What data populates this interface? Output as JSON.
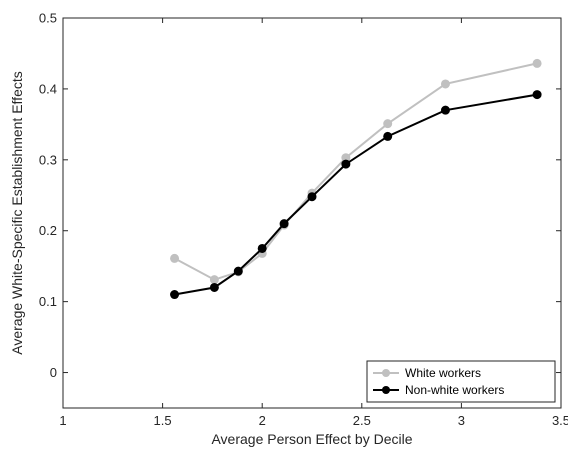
{
  "chart_data": {
    "type": "line",
    "title": "",
    "xlabel": "Average Person Effect by Decile",
    "ylabel": "Average White-Specific Establishment Effects",
    "xlim": [
      1,
      3.5
    ],
    "ylim": [
      -0.05,
      0.5
    ],
    "xticks": [
      1,
      1.5,
      2,
      2.5,
      3,
      3.5
    ],
    "xtick_labels": [
      "1",
      "1.5",
      "2",
      "2.5",
      "3",
      "3.5"
    ],
    "yticks": [
      0,
      0.1,
      0.2,
      0.3,
      0.4,
      0.5
    ],
    "ytick_labels": [
      "0",
      "0.1",
      "0.2",
      "0.3",
      "0.4",
      "0.5"
    ],
    "grid": false,
    "legend_position": "bottom-right",
    "series": [
      {
        "name": "White workers",
        "color": "#c0c0c0",
        "marker": "circle",
        "x": [
          1.56,
          1.76,
          1.88,
          2.0,
          2.11,
          2.25,
          2.42,
          2.63,
          2.92,
          3.38
        ],
        "y": [
          0.161,
          0.131,
          0.142,
          0.168,
          0.208,
          0.253,
          0.303,
          0.351,
          0.407,
          0.436
        ]
      },
      {
        "name": "Non-white workers",
        "color": "#000000",
        "marker": "circle",
        "x": [
          1.56,
          1.76,
          1.88,
          2.0,
          2.11,
          2.25,
          2.42,
          2.63,
          2.92,
          3.38
        ],
        "y": [
          0.11,
          0.12,
          0.143,
          0.175,
          0.21,
          0.248,
          0.294,
          0.333,
          0.37,
          0.392
        ]
      }
    ]
  }
}
